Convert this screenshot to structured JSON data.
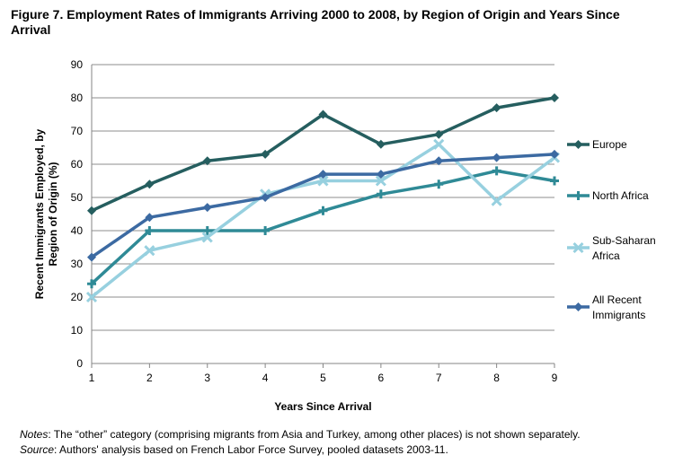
{
  "title": "Figure 7. Employment Rates of Immigrants Arriving 2000 to 2008, by Region of Origin and Years Since Arrival",
  "notes": {
    "label1": "Notes",
    "text1": ": The “other” category (comprising migrants from Asia and Turkey, among other places) is not shown separately.",
    "label2": "Source",
    "text2": ": Authors' analysis based on French Labor Force Survey, pooled datasets 2003-11."
  },
  "chart_data": {
    "type": "line",
    "title": "Figure 7. Employment Rates of Immigrants Arriving 2000 to 2008, by Region of Origin and Years Since Arrival",
    "xlabel": "Years Since Arrival",
    "ylabel": "Recent Immigrants Employed, by Region of Origin (%)",
    "ylabel_lines": [
      "Recent Immigrants Employed, by",
      "Region of Origin (%)"
    ],
    "x": [
      1,
      2,
      3,
      4,
      5,
      6,
      7,
      8,
      9
    ],
    "ylim": [
      0,
      90
    ],
    "yticks": [
      0,
      10,
      20,
      30,
      40,
      50,
      60,
      70,
      80,
      90
    ],
    "grid": true,
    "legend_position": "right",
    "series": [
      {
        "name": "Europe",
        "legend_lines": [
          "Europe"
        ],
        "color": "#255e5f",
        "marker": "diamond",
        "values": [
          46,
          54,
          61,
          63,
          75,
          66,
          69,
          77,
          80
        ]
      },
      {
        "name": "North Africa",
        "legend_lines": [
          "North Africa"
        ],
        "color": "#2f8a96",
        "marker": "plus",
        "values": [
          24,
          40,
          40,
          40,
          46,
          51,
          54,
          58,
          55
        ]
      },
      {
        "name": "Sub-Saharan Africa",
        "legend_lines": [
          "Sub-Saharan",
          "Africa"
        ],
        "color": "#97d0df",
        "marker": "x",
        "values": [
          20,
          34,
          38,
          51,
          55,
          55,
          66,
          49,
          62
        ]
      },
      {
        "name": "All Recent Immigrants",
        "legend_lines": [
          "All Recent",
          "Immigrants"
        ],
        "color": "#3c6aa2",
        "marker": "diamond",
        "values": [
          32,
          44,
          47,
          50,
          57,
          57,
          61,
          62,
          63
        ]
      }
    ]
  }
}
